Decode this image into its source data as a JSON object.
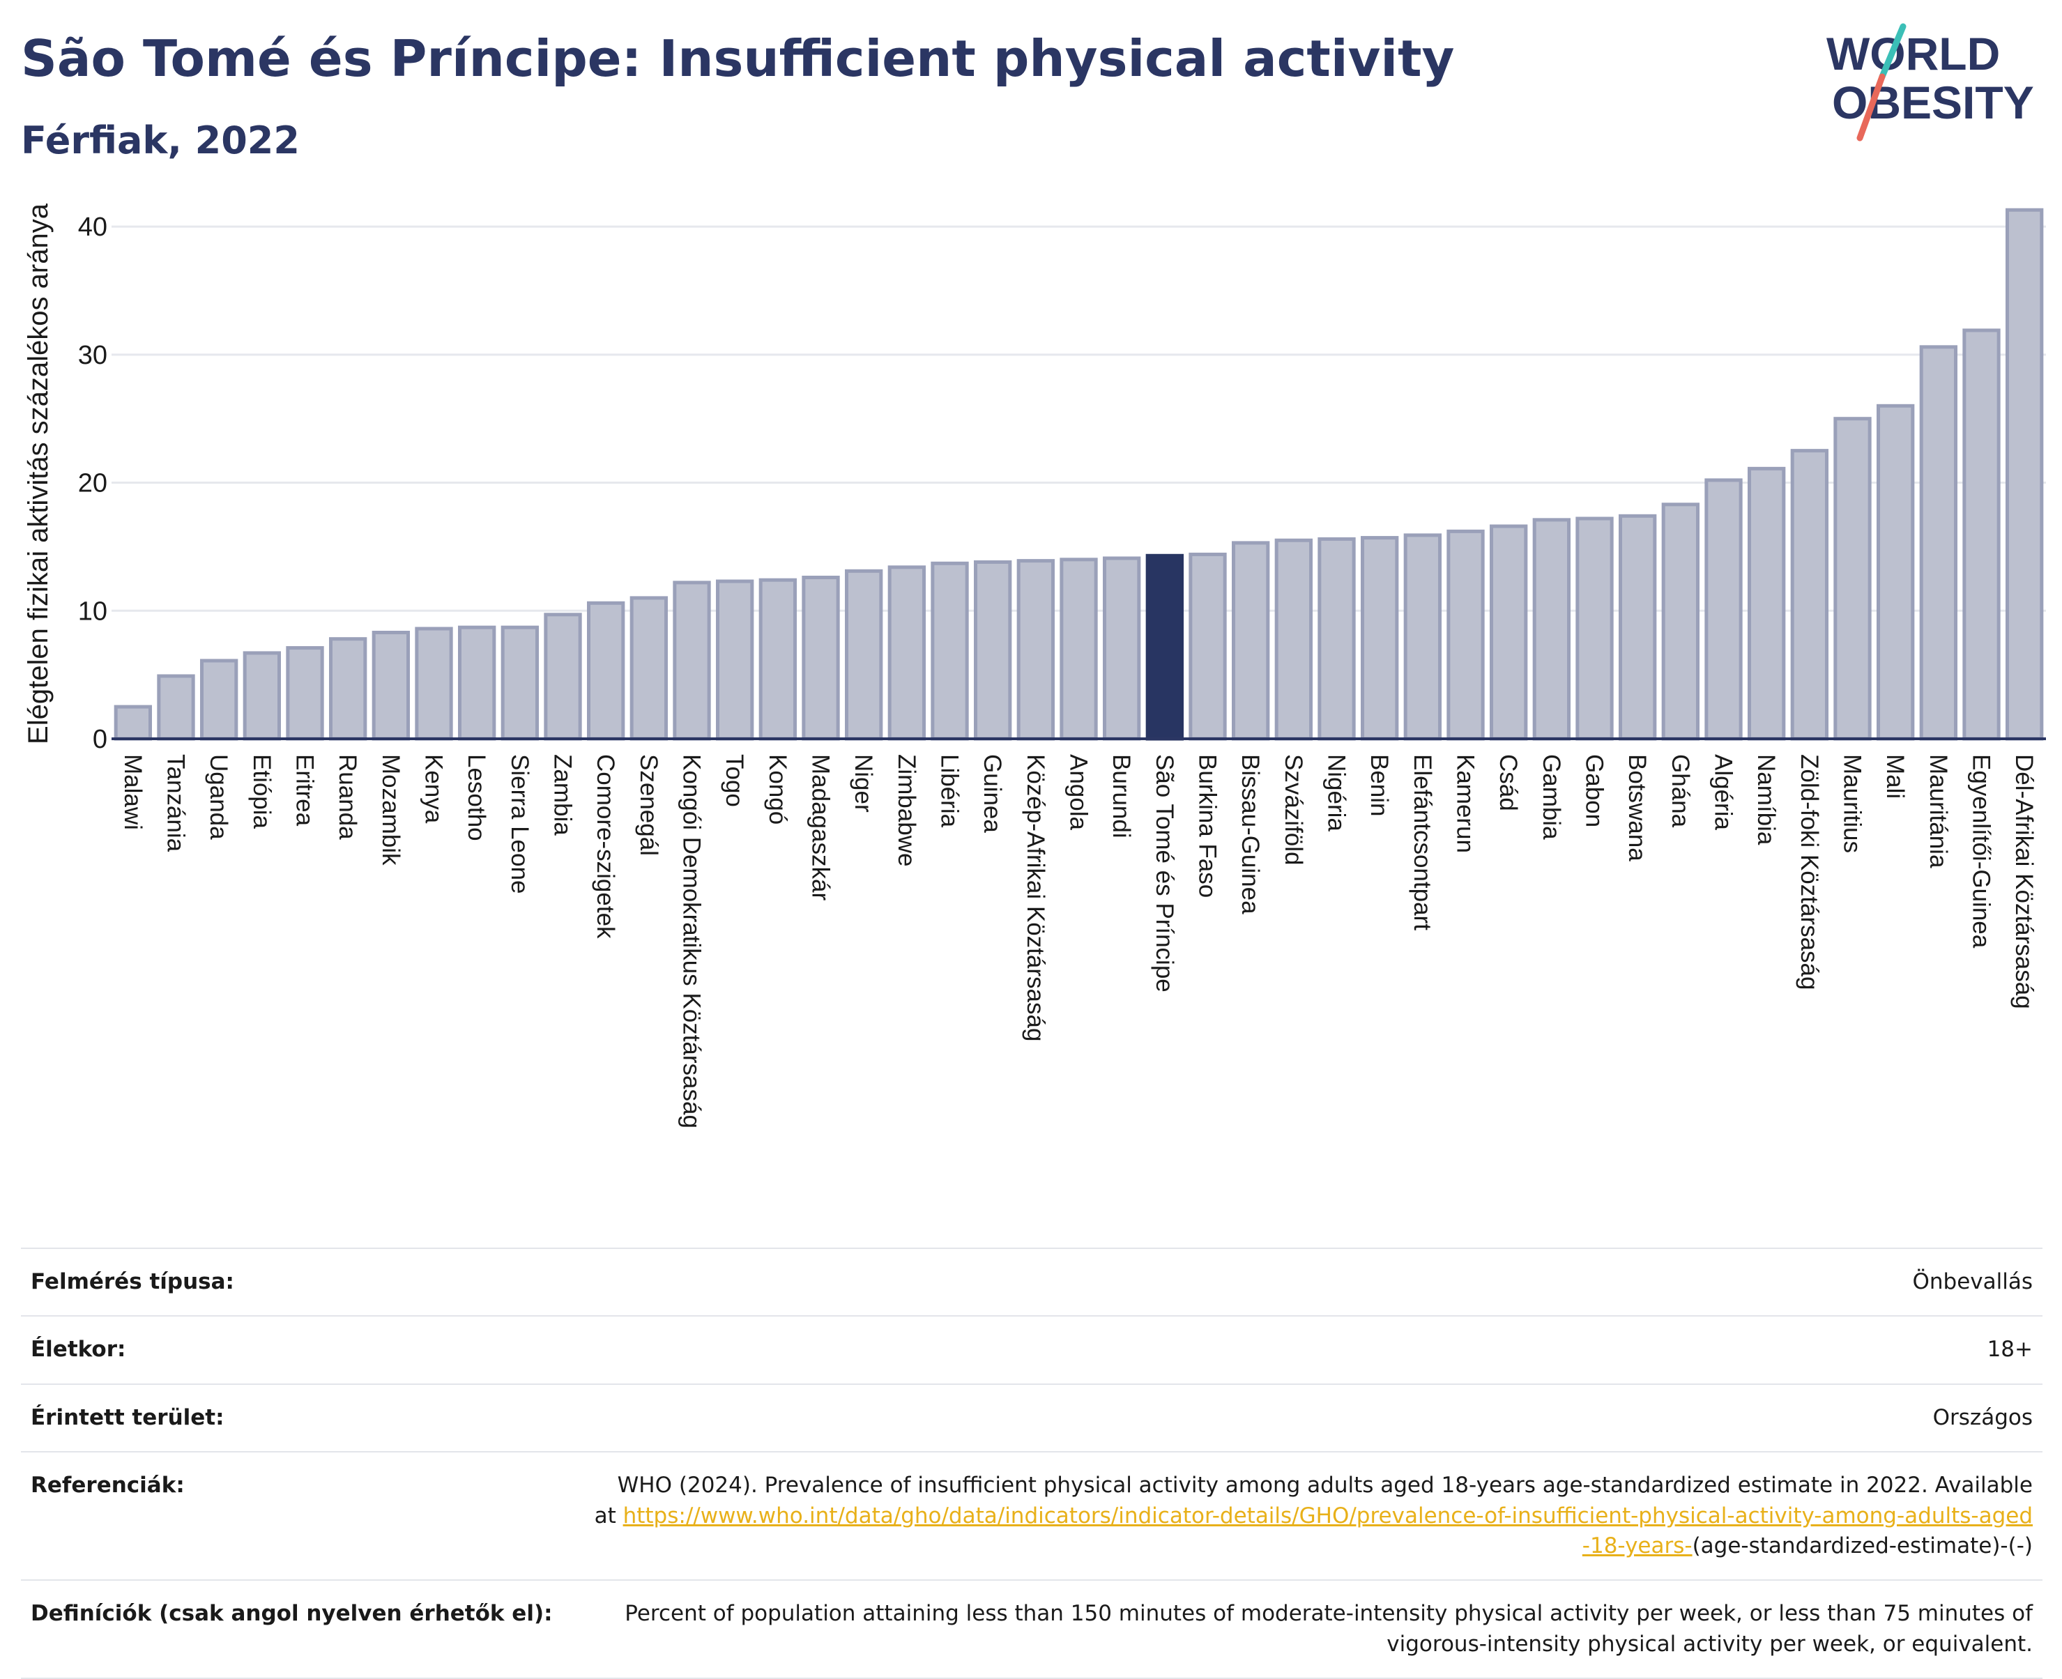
{
  "title": "São Tomé és Príncipe: Insufficient physical activity",
  "subtitle": "Férfiak, 2022",
  "logo": {
    "line1": "WORLD",
    "line2": "OBESITY",
    "accent_teal": "#3bbfb7",
    "accent_red": "#e8685a",
    "text_color": "#2b3663"
  },
  "colors": {
    "bar": "#bcc0cf",
    "bar_stroke": "#9aa0b9",
    "highlight": "#283562",
    "axis": "#2b3663",
    "grid": "#e6e8ed"
  },
  "chart_data": {
    "type": "bar",
    "title": "São Tomé és Príncipe: Insufficient physical activity",
    "subtitle": "Férfiak, 2022",
    "xlabel": "",
    "ylabel": "Elégtelen fizikai aktivitás százalékos aránya",
    "ylim": [
      0,
      43
    ],
    "yticks": [
      0,
      10,
      20,
      30,
      40
    ],
    "grid": true,
    "highlight": "São Tomé és Príncipe",
    "categories": [
      "Malawi",
      "Tanzánia",
      "Uganda",
      "Etiópia",
      "Eritrea",
      "Ruanda",
      "Mozambik",
      "Kenya",
      "Lesotho",
      "Sierra Leone",
      "Zambia",
      "Comore-szigetek",
      "Szenegál",
      "Kongói Demokratikus Köztársaság",
      "Togo",
      "Kongó",
      "Madagaszkár",
      "Niger",
      "Zimbabwe",
      "Libéria",
      "Guinea",
      "Közép-Afrikai Köztársaság",
      "Angola",
      "Burundi",
      "São Tomé és Príncipe",
      "Burkina Faso",
      "Bissau-Guinea",
      "Szváziföld",
      "Nigéria",
      "Benin",
      "Elefántcsontpart",
      "Kamerun",
      "Csád",
      "Gambia",
      "Gabon",
      "Botswana",
      "Ghána",
      "Algéria",
      "Namíbia",
      "Zöld-foki Köztársaság",
      "Mauritius",
      "Mali",
      "Mauritánia",
      "Egyenlítői-Guinea",
      "Dél-Afrikai Köztársaság"
    ],
    "values": [
      2.5,
      4.9,
      6.1,
      6.7,
      7.1,
      7.8,
      8.3,
      8.6,
      8.7,
      8.7,
      9.7,
      10.6,
      11.0,
      12.2,
      12.3,
      12.4,
      12.6,
      13.1,
      13.4,
      13.7,
      13.8,
      13.9,
      14.0,
      14.1,
      14.3,
      14.4,
      15.3,
      15.5,
      15.6,
      15.7,
      15.9,
      16.2,
      16.6,
      17.1,
      17.2,
      17.4,
      18.3,
      20.2,
      21.1,
      22.5,
      25.0,
      26.0,
      30.6,
      31.9,
      41.3
    ]
  },
  "info": [
    {
      "label": "Felmérés típusa:",
      "value": "Önbevallás"
    },
    {
      "label": "Életkor:",
      "value": "18+"
    },
    {
      "label": "Érintett terület:",
      "value": "Országos"
    },
    {
      "label": "Referenciák:",
      "value_prefix": "WHO (2024). Prevalence of insufficient physical activity among adults aged 18-years age-standardized estimate in 2022. Available at ",
      "link": "https://www.who.int/data/gho/data/indicators/indicator-details/GHO/prevalence-of-insufficient-physical-activity-among-adults-aged-18-years-",
      "value_suffix": "(age-standardized-estimate)-(-)"
    },
    {
      "label": "Definíciók (csak angol nyelven érhetők el):",
      "value": "Percent of population attaining less than 150 minutes of moderate-intensity physical activity per week, or less than 75 minutes of vigorous-intensity physical activity per week, or equivalent."
    }
  ]
}
